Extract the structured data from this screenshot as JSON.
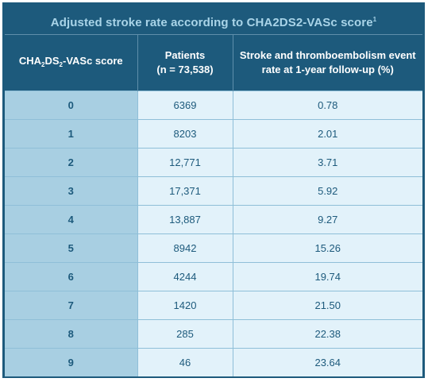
{
  "title": "Adjusted stroke rate according to CHA2DS2-VASc score",
  "title_superscript": "1",
  "header": {
    "score": {
      "p1": "CHA",
      "sub1": "2",
      "p2": "DS",
      "sub2": "2",
      "p3": "-VASc score"
    },
    "patients": {
      "line1": "Patients",
      "line2": "(n = 73,538)"
    },
    "rate": {
      "line1": "Stroke and thromboembolism event",
      "line2": "rate at 1-year follow-up (%)"
    }
  },
  "rows": [
    {
      "score": "0",
      "patients": "6369",
      "rate": "0.78"
    },
    {
      "score": "1",
      "patients": "8203",
      "rate": "2.01"
    },
    {
      "score": "2",
      "patients": "12,771",
      "rate": "3.71"
    },
    {
      "score": "3",
      "patients": "17,371",
      "rate": "5.92"
    },
    {
      "score": "4",
      "patients": "13,887",
      "rate": "9.27"
    },
    {
      "score": "5",
      "patients": "8942",
      "rate": "15.26"
    },
    {
      "score": "6",
      "patients": "4244",
      "rate": "19.74"
    },
    {
      "score": "7",
      "patients": "1420",
      "rate": "21.50"
    },
    {
      "score": "8",
      "patients": "285",
      "rate": "22.38"
    },
    {
      "score": "9",
      "patients": "46",
      "rate": "23.64"
    }
  ],
  "colors": {
    "header_bg": "#1d5a7c",
    "title_text": "#a9d4e8",
    "score_cell_bg": "#a8cfe2",
    "value_cell_bg": "#e2f2fa",
    "text": "#1d5a7c"
  }
}
